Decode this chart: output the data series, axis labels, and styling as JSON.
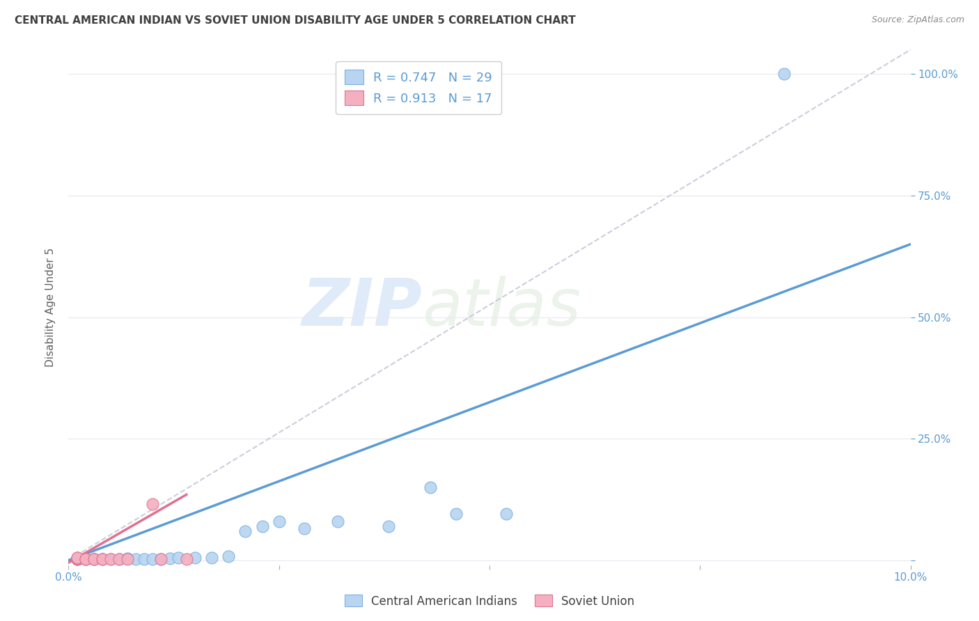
{
  "title": "CENTRAL AMERICAN INDIAN VS SOVIET UNION DISABILITY AGE UNDER 5 CORRELATION CHART",
  "source": "Source: ZipAtlas.com",
  "ylabel": "Disability Age Under 5",
  "background_color": "#ffffff",
  "watermark_text": "ZIPatlas",
  "legend1_label1": "R = 0.747   N = 29",
  "legend1_label2": "R = 0.913   N = 17",
  "legend2_label1": "Central American Indians",
  "legend2_label2": "Soviet Union",
  "blue_scatter_x": [
    0.001,
    0.001,
    0.002,
    0.002,
    0.003,
    0.003,
    0.004,
    0.005,
    0.006,
    0.007,
    0.008,
    0.009,
    0.01,
    0.011,
    0.012,
    0.013,
    0.015,
    0.017,
    0.019,
    0.021,
    0.023,
    0.025,
    0.028,
    0.032,
    0.038,
    0.043,
    0.046,
    0.052,
    0.085
  ],
  "blue_scatter_y": [
    0.002,
    0.003,
    0.002,
    0.003,
    0.002,
    0.003,
    0.002,
    0.002,
    0.003,
    0.004,
    0.003,
    0.003,
    0.003,
    0.003,
    0.004,
    0.005,
    0.005,
    0.006,
    0.008,
    0.06,
    0.07,
    0.08,
    0.065,
    0.08,
    0.07,
    0.15,
    0.095,
    0.095,
    1.0
  ],
  "pink_scatter_x": [
    0.001,
    0.001,
    0.001,
    0.001,
    0.001,
    0.002,
    0.002,
    0.003,
    0.003,
    0.004,
    0.004,
    0.005,
    0.006,
    0.007,
    0.01,
    0.011,
    0.014
  ],
  "pink_scatter_y": [
    0.002,
    0.003,
    0.004,
    0.005,
    0.006,
    0.002,
    0.003,
    0.002,
    0.003,
    0.002,
    0.003,
    0.002,
    0.002,
    0.003,
    0.115,
    0.002,
    0.002
  ],
  "blue_line_x": [
    0.0,
    0.1
  ],
  "blue_line_y": [
    0.0,
    0.65
  ],
  "pink_line_x": [
    0.0,
    0.014
  ],
  "pink_line_y": [
    -0.005,
    0.135
  ],
  "dash_line_x": [
    0.0,
    0.1
  ],
  "dash_line_y": [
    0.0,
    1.05
  ],
  "xlim": [
    0.0,
    0.1
  ],
  "ylim": [
    -0.01,
    1.05
  ],
  "blue_color": "#5b9bd5",
  "pink_color": "#e07090",
  "blue_scatter_facecolor": "#b8d4f0",
  "blue_scatter_edgecolor": "#7ab0e0",
  "pink_scatter_facecolor": "#f4b0c0",
  "pink_scatter_edgecolor": "#e07090",
  "dash_color": "#c8c8d8",
  "grid_color": "#e8e8f0",
  "title_fontsize": 11,
  "source_fontsize": 9,
  "tick_label_fontsize": 11,
  "ylabel_fontsize": 11,
  "xtick_positions": [
    0.0,
    0.025,
    0.05,
    0.075,
    0.1
  ],
  "xtick_labels": [
    "0.0%",
    "",
    "",
    "",
    "10.0%"
  ],
  "ytick_positions": [
    0.0,
    0.25,
    0.5,
    0.75,
    1.0
  ],
  "right_ytick_labels": [
    "",
    "25.0%",
    "50.0%",
    "75.0%",
    "100.0%"
  ]
}
